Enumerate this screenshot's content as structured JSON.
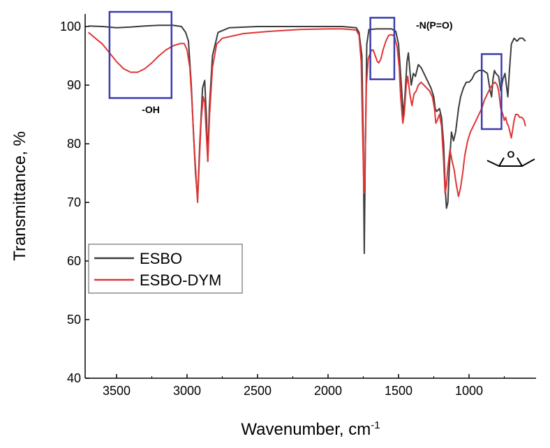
{
  "chart_data": {
    "type": "line",
    "title": "",
    "xlabel": "Wavenumber, cm",
    "xlabel_superscript": "-1",
    "ylabel": "Transmittance, %",
    "xlim": [
      3800,
      600
    ],
    "ylim": [
      40,
      102
    ],
    "x_reversed": true,
    "x_ticks": [
      3500,
      3000,
      2500,
      2000,
      1500,
      1000
    ],
    "y_ticks": [
      40,
      50,
      60,
      70,
      80,
      90,
      100
    ],
    "legend_position": "middle-left",
    "series": [
      {
        "name": "ESBO",
        "color": "#3c3c3c",
        "points": [
          [
            3800,
            100.2
          ],
          [
            3700,
            100.1
          ],
          [
            3600,
            100.0
          ],
          [
            3500,
            99.8
          ],
          [
            3400,
            99.9
          ],
          [
            3300,
            100.1
          ],
          [
            3200,
            100.2
          ],
          [
            3100,
            100.2
          ],
          [
            3040,
            100.0
          ],
          [
            3010,
            99.0
          ],
          [
            2990,
            97.5
          ],
          [
            2970,
            90.0
          ],
          [
            2955,
            82.0
          ],
          [
            2940,
            75.0
          ],
          [
            2925,
            70.5
          ],
          [
            2910,
            80.0
          ],
          [
            2890,
            89.5
          ],
          [
            2875,
            90.8
          ],
          [
            2862,
            84.0
          ],
          [
            2853,
            77.0
          ],
          [
            2842,
            86.0
          ],
          [
            2820,
            95.0
          ],
          [
            2780,
            99.0
          ],
          [
            2700,
            99.8
          ],
          [
            2500,
            100.0
          ],
          [
            2300,
            100.0
          ],
          [
            2100,
            100.0
          ],
          [
            1900,
            100.0
          ],
          [
            1800,
            99.8
          ],
          [
            1780,
            99.0
          ],
          [
            1760,
            95.0
          ],
          [
            1750,
            80.0
          ],
          [
            1743,
            61.3
          ],
          [
            1735,
            80.0
          ],
          [
            1725,
            97.0
          ],
          [
            1710,
            99.5
          ],
          [
            1650,
            99.6
          ],
          [
            1600,
            99.6
          ],
          [
            1550,
            99.6
          ],
          [
            1520,
            99.2
          ],
          [
            1500,
            97.0
          ],
          [
            1480,
            90.0
          ],
          [
            1465,
            84.5
          ],
          [
            1455,
            88.0
          ],
          [
            1440,
            94.0
          ],
          [
            1430,
            95.5
          ],
          [
            1418,
            92.0
          ],
          [
            1410,
            90.0
          ],
          [
            1395,
            92.0
          ],
          [
            1380,
            91.5
          ],
          [
            1360,
            93.5
          ],
          [
            1340,
            93.0
          ],
          [
            1320,
            92.0
          ],
          [
            1300,
            91.0
          ],
          [
            1270,
            89.5
          ],
          [
            1250,
            88.0
          ],
          [
            1240,
            86.0
          ],
          [
            1230,
            85.5
          ],
          [
            1210,
            86.0
          ],
          [
            1195,
            84.5
          ],
          [
            1180,
            80.0
          ],
          [
            1168,
            72.0
          ],
          [
            1160,
            69.0
          ],
          [
            1150,
            70.0
          ],
          [
            1140,
            76.0
          ],
          [
            1125,
            82.0
          ],
          [
            1110,
            80.5
          ],
          [
            1095,
            82.0
          ],
          [
            1075,
            86.0
          ],
          [
            1060,
            88.0
          ],
          [
            1040,
            89.5
          ],
          [
            1020,
            90.5
          ],
          [
            1000,
            90.5
          ],
          [
            980,
            91.0
          ],
          [
            960,
            92.0
          ],
          [
            930,
            92.5
          ],
          [
            900,
            92.5
          ],
          [
            870,
            92.0
          ],
          [
            850,
            89.0
          ],
          [
            840,
            88.0
          ],
          [
            830,
            91.0
          ],
          [
            820,
            92.5
          ],
          [
            810,
            92.0
          ],
          [
            790,
            91.5
          ],
          [
            775,
            89.0
          ],
          [
            760,
            91.0
          ],
          [
            745,
            92.0
          ],
          [
            735,
            90.0
          ],
          [
            725,
            88.0
          ],
          [
            715,
            92.0
          ],
          [
            700,
            97.0
          ],
          [
            680,
            98.0
          ],
          [
            660,
            97.5
          ],
          [
            640,
            98.0
          ],
          [
            620,
            98.0
          ],
          [
            600,
            97.5
          ]
        ]
      },
      {
        "name": "ESBO-DYM",
        "color": "#e03535",
        "points": [
          [
            3800,
            100.2
          ],
          [
            3750,
            99.8
          ],
          [
            3700,
            99.0
          ],
          [
            3650,
            98.0
          ],
          [
            3600,
            97.0
          ],
          [
            3550,
            95.5
          ],
          [
            3500,
            94.0
          ],
          [
            3450,
            92.8
          ],
          [
            3400,
            92.2
          ],
          [
            3350,
            92.2
          ],
          [
            3300,
            92.8
          ],
          [
            3250,
            93.8
          ],
          [
            3200,
            95.0
          ],
          [
            3150,
            96.0
          ],
          [
            3100,
            96.7
          ],
          [
            3050,
            97.1
          ],
          [
            3020,
            97.1
          ],
          [
            3000,
            96.0
          ],
          [
            2980,
            93.0
          ],
          [
            2965,
            87.0
          ],
          [
            2950,
            80.0
          ],
          [
            2935,
            74.0
          ],
          [
            2925,
            70.0
          ],
          [
            2915,
            76.0
          ],
          [
            2900,
            84.0
          ],
          [
            2885,
            88.0
          ],
          [
            2875,
            87.0
          ],
          [
            2862,
            81.0
          ],
          [
            2853,
            77.0
          ],
          [
            2840,
            85.0
          ],
          [
            2820,
            93.0
          ],
          [
            2790,
            97.0
          ],
          [
            2750,
            98.0
          ],
          [
            2600,
            98.8
          ],
          [
            2400,
            99.2
          ],
          [
            2200,
            99.5
          ],
          [
            2000,
            99.6
          ],
          [
            1900,
            99.6
          ],
          [
            1800,
            99.4
          ],
          [
            1780,
            98.5
          ],
          [
            1765,
            94.0
          ],
          [
            1755,
            82.0
          ],
          [
            1745,
            71.5
          ],
          [
            1738,
            75.0
          ],
          [
            1728,
            90.0
          ],
          [
            1715,
            94.5
          ],
          [
            1700,
            95.5
          ],
          [
            1690,
            96.0
          ],
          [
            1680,
            96.0
          ],
          [
            1665,
            95.0
          ],
          [
            1650,
            94.0
          ],
          [
            1640,
            93.8
          ],
          [
            1625,
            94.5
          ],
          [
            1610,
            96.0
          ],
          [
            1590,
            97.5
          ],
          [
            1570,
            98.5
          ],
          [
            1550,
            98.6
          ],
          [
            1530,
            98.4
          ],
          [
            1510,
            96.5
          ],
          [
            1495,
            93.0
          ],
          [
            1485,
            88.0
          ],
          [
            1470,
            83.5
          ],
          [
            1460,
            85.0
          ],
          [
            1445,
            90.0
          ],
          [
            1435,
            91.5
          ],
          [
            1420,
            88.5
          ],
          [
            1405,
            86.5
          ],
          [
            1390,
            88.5
          ],
          [
            1375,
            89.0
          ],
          [
            1360,
            90.0
          ],
          [
            1340,
            90.5
          ],
          [
            1320,
            90.0
          ],
          [
            1300,
            89.5
          ],
          [
            1280,
            89.0
          ],
          [
            1260,
            88.0
          ],
          [
            1245,
            86.0
          ],
          [
            1235,
            83.5
          ],
          [
            1225,
            84.0
          ],
          [
            1210,
            85.0
          ],
          [
            1195,
            83.0
          ],
          [
            1180,
            77.0
          ],
          [
            1170,
            71.5
          ],
          [
            1160,
            73.0
          ],
          [
            1150,
            76.0
          ],
          [
            1135,
            79.0
          ],
          [
            1120,
            77.0
          ],
          [
            1105,
            75.5
          ],
          [
            1090,
            73.0
          ],
          [
            1075,
            71.0
          ],
          [
            1060,
            72.5
          ],
          [
            1045,
            75.0
          ],
          [
            1030,
            78.0
          ],
          [
            1010,
            80.5
          ],
          [
            990,
            82.0
          ],
          [
            970,
            83.0
          ],
          [
            950,
            84.0
          ],
          [
            930,
            85.0
          ],
          [
            910,
            86.0
          ],
          [
            890,
            87.5
          ],
          [
            870,
            88.5
          ],
          [
            850,
            89.5
          ],
          [
            830,
            90.2
          ],
          [
            815,
            90.5
          ],
          [
            800,
            90.0
          ],
          [
            790,
            89.0
          ],
          [
            775,
            86.0
          ],
          [
            760,
            85.0
          ],
          [
            750,
            84.0
          ],
          [
            740,
            84.5
          ],
          [
            730,
            83.5
          ],
          [
            720,
            83.0
          ],
          [
            710,
            82.0
          ],
          [
            700,
            81.0
          ],
          [
            690,
            82.5
          ],
          [
            680,
            84.0
          ],
          [
            670,
            85.0
          ],
          [
            655,
            85.0
          ],
          [
            640,
            84.5
          ],
          [
            625,
            84.5
          ],
          [
            610,
            84.0
          ],
          [
            600,
            83.0
          ]
        ]
      }
    ],
    "annotations": [
      {
        "label": "-OH",
        "x_range": [
          3550,
          3110
        ],
        "y_range": [
          87.8,
          102.5
        ]
      },
      {
        "label": "-N(P=O)",
        "x_range": [
          1700,
          1530
        ],
        "y_range": [
          91.0,
          101.5
        ]
      },
      {
        "label": "",
        "x_range": [
          910,
          770
        ],
        "y_range": [
          82.5,
          95.3
        ]
      }
    ],
    "epoxide_symbol_label": "O"
  }
}
